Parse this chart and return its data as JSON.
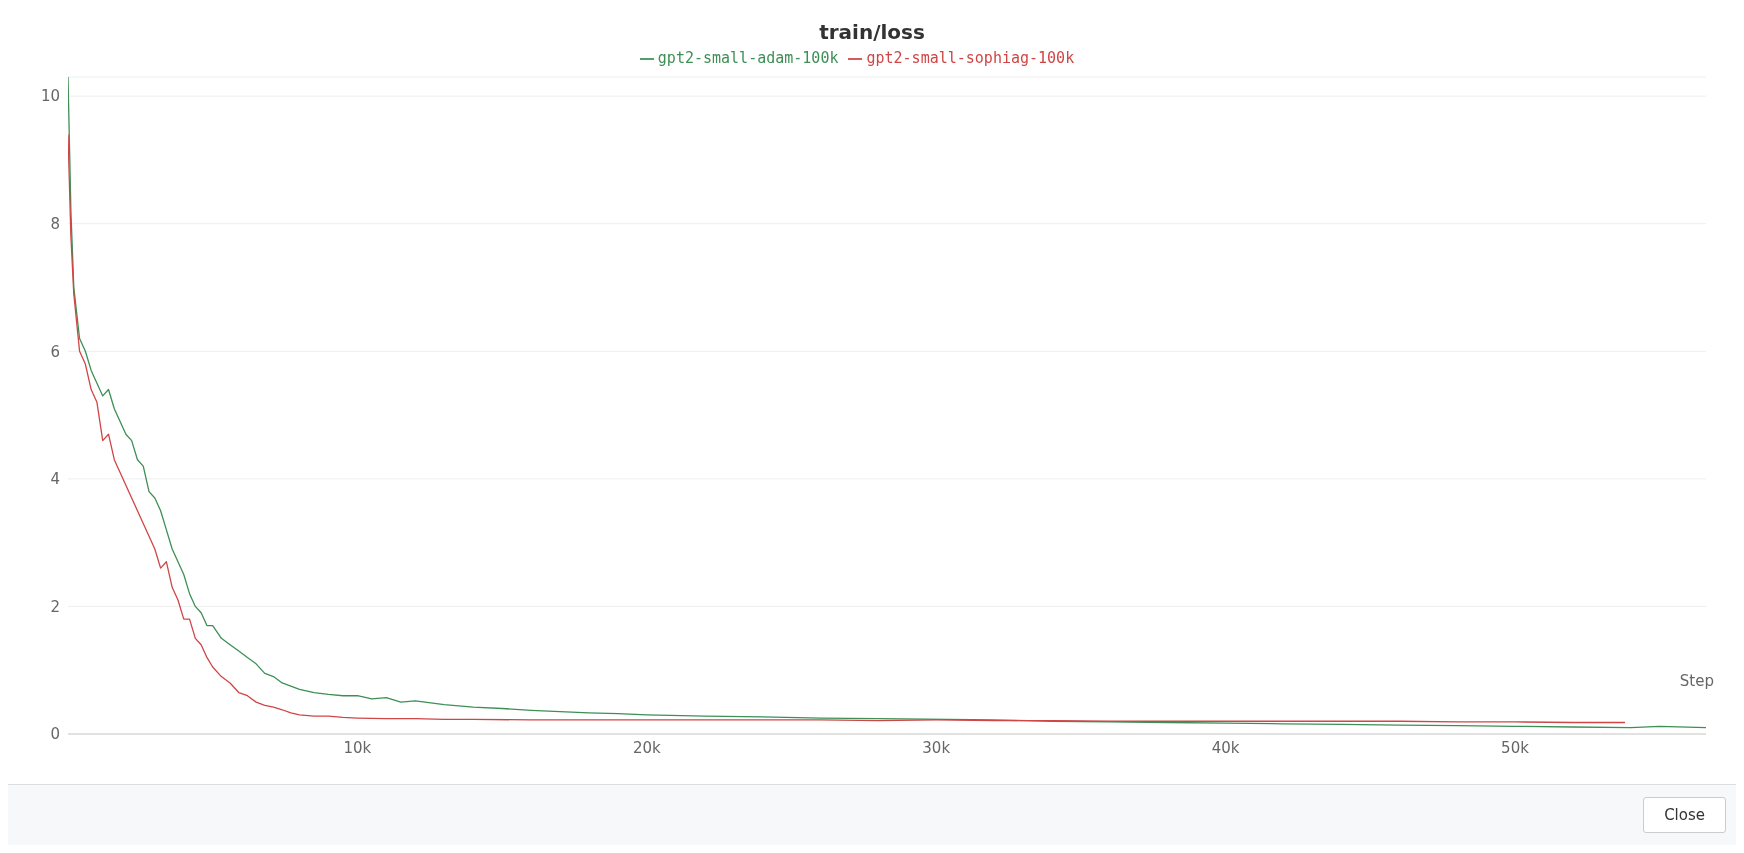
{
  "chart_data": {
    "type": "line",
    "title": "train/loss",
    "xlabel": "Step",
    "annotations": [
      "Close"
    ],
    "xlim": [
      0,
      56600
    ],
    "ylim": [
      0,
      10.3
    ],
    "yticks": [
      0,
      2,
      4,
      6,
      8,
      10
    ],
    "xticks": [
      {
        "value": 10000,
        "label": "10k"
      },
      {
        "value": 20000,
        "label": "20k"
      },
      {
        "value": 30000,
        "label": "30k"
      },
      {
        "value": 40000,
        "label": "40k"
      },
      {
        "value": 50000,
        "label": "50k"
      }
    ],
    "grid": "y",
    "legend": "top",
    "marker": "none",
    "line_style": "solid",
    "series": [
      {
        "name": "gpt2-small-adam-100k",
        "color": "#3d8f55",
        "x": [
          0,
          100,
          200,
          400,
          600,
          800,
          1000,
          1200,
          1400,
          1600,
          1800,
          2000,
          2200,
          2400,
          2600,
          2800,
          3000,
          3200,
          3400,
          3600,
          3800,
          4000,
          4200,
          4400,
          4600,
          4800,
          5000,
          5300,
          5600,
          5900,
          6200,
          6500,
          6800,
          7100,
          7400,
          7700,
          8000,
          8500,
          9000,
          9500,
          10000,
          10500,
          11000,
          11500,
          12000,
          13000,
          14000,
          15000,
          16000,
          17000,
          18000,
          19000,
          20000,
          22000,
          24000,
          26000,
          28000,
          30000,
          32000,
          34000,
          36000,
          38000,
          40000,
          42000,
          44000,
          46000,
          48000,
          50000,
          52000,
          54000,
          55000,
          56600
        ],
        "values": [
          10.3,
          8.2,
          7,
          6.2,
          6,
          5.7,
          5.5,
          5.3,
          5.4,
          5.1,
          4.9,
          4.7,
          4.6,
          4.3,
          4.2,
          3.8,
          3.7,
          3.5,
          3.2,
          2.9,
          2.7,
          2.5,
          2.2,
          2.0,
          1.9,
          1.7,
          1.7,
          1.5,
          1.4,
          1.3,
          1.2,
          1.1,
          0.95,
          0.9,
          0.8,
          0.75,
          0.7,
          0.65,
          0.62,
          0.6,
          0.6,
          0.55,
          0.57,
          0.5,
          0.52,
          0.46,
          0.42,
          0.4,
          0.37,
          0.35,
          0.33,
          0.32,
          0.3,
          0.28,
          0.27,
          0.25,
          0.24,
          null,
          0.22,
          0.2,
          0.19,
          0.18,
          0.17,
          0.16,
          0.15,
          0.14,
          0.13,
          0.12,
          0.11,
          0.1,
          0.12,
          0.1
        ]
      },
      {
        "name": "gpt2-small-sophiag-100k",
        "color": "#d04545",
        "x": [
          0,
          100,
          200,
          400,
          600,
          800,
          1000,
          1200,
          1400,
          1600,
          1800,
          2000,
          2200,
          2400,
          2600,
          2800,
          3000,
          3200,
          3400,
          3600,
          3800,
          4000,
          4200,
          4400,
          4600,
          4800,
          5000,
          5300,
          5600,
          5900,
          6200,
          6500,
          6800,
          7100,
          7400,
          7700,
          8000,
          8500,
          9000,
          9500,
          10000,
          11000,
          12000,
          13000,
          14000,
          16000,
          18000,
          20000,
          22000,
          24000,
          26000,
          28000,
          30000,
          32000,
          34000,
          36000,
          38000,
          40000,
          42000,
          44000,
          46000,
          48000,
          50000,
          52000,
          53800
        ],
        "values": [
          9.4,
          7.8,
          6.9,
          6.0,
          5.8,
          5.4,
          5.2,
          4.6,
          4.7,
          4.3,
          4.1,
          3.9,
          3.7,
          3.5,
          3.3,
          3.1,
          2.9,
          2.6,
          2.7,
          2.3,
          2.1,
          1.8,
          1.8,
          1.5,
          1.4,
          1.2,
          1.05,
          0.9,
          0.8,
          0.65,
          0.6,
          0.5,
          0.45,
          0.42,
          0.38,
          0.33,
          0.3,
          0.28,
          0.28,
          0.26,
          0.25,
          0.24,
          0.24,
          0.23,
          0.23,
          0.22,
          0.22,
          0.22,
          0.22,
          0.22,
          0.22,
          0.21,
          0.22,
          0.21,
          0.21,
          0.2,
          0.2,
          0.2,
          0.2,
          0.2,
          0.2,
          0.19,
          0.19,
          0.18,
          0.18
        ]
      }
    ]
  }
}
